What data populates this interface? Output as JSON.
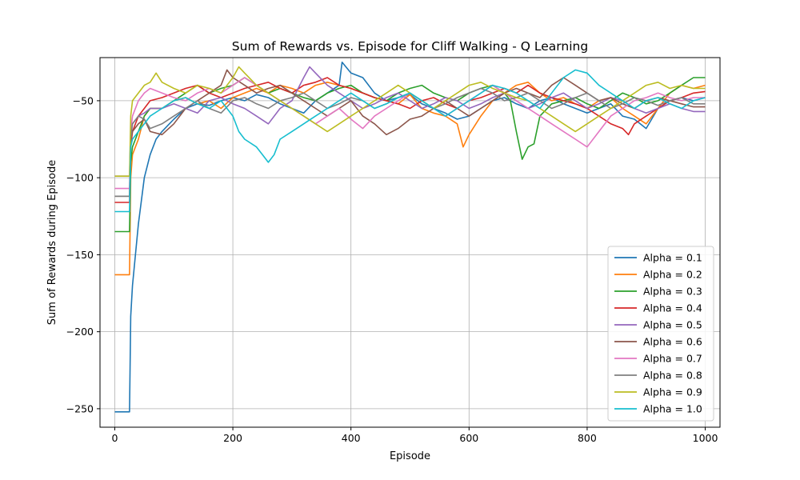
{
  "chart_data": {
    "type": "line",
    "title": "Sum of Rewards vs. Episode for Cliff Walking - Q Learning",
    "xlabel": "Episode",
    "ylabel": "Sum of Rewards during Episode",
    "xlim": [
      -25,
      1025
    ],
    "ylim": [
      -262,
      -22
    ],
    "xticks": [
      0,
      200,
      400,
      600,
      800,
      1000
    ],
    "yticks": [
      -250,
      -200,
      -150,
      -100,
      -50
    ],
    "grid": true,
    "legend_position": "bottom-right",
    "series": [
      {
        "name": "Alpha = 0.1",
        "color": "#1f77b4",
        "x": [
          0,
          25,
          27,
          30,
          35,
          40,
          45,
          50,
          60,
          70,
          80,
          90,
          100,
          120,
          140,
          160,
          180,
          200,
          220,
          240,
          260,
          280,
          300,
          320,
          340,
          360,
          380,
          385,
          400,
          420,
          440,
          460,
          480,
          500,
          520,
          540,
          560,
          580,
          600,
          620,
          640,
          660,
          680,
          700,
          720,
          740,
          760,
          780,
          800,
          820,
          840,
          860,
          880,
          900,
          920,
          940,
          960,
          980,
          1000
        ],
        "y": [
          -252,
          -252,
          -190,
          -170,
          -150,
          -130,
          -115,
          -100,
          -85,
          -75,
          -70,
          -66,
          -62,
          -55,
          -52,
          -53,
          -50,
          -48,
          -50,
          -46,
          -48,
          -52,
          -55,
          -58,
          -50,
          -45,
          -40,
          -25,
          -32,
          -35,
          -45,
          -50,
          -48,
          -46,
          -52,
          -55,
          -58,
          -62,
          -60,
          -55,
          -50,
          -48,
          -52,
          -55,
          -50,
          -48,
          -52,
          -55,
          -58,
          -55,
          -52,
          -60,
          -62,
          -68,
          -55,
          -50,
          -48,
          -50,
          -48
        ]
      },
      {
        "name": "Alpha = 0.2",
        "color": "#ff7f0e",
        "x": [
          0,
          25,
          27,
          30,
          40,
          50,
          60,
          80,
          100,
          120,
          140,
          160,
          180,
          200,
          220,
          240,
          260,
          280,
          300,
          320,
          340,
          360,
          380,
          400,
          420,
          440,
          460,
          480,
          500,
          520,
          540,
          560,
          580,
          590,
          600,
          620,
          640,
          660,
          680,
          700,
          720,
          740,
          760,
          780,
          800,
          820,
          840,
          860,
          880,
          900,
          920,
          940,
          960,
          980,
          1000
        ],
        "y": [
          -163,
          -163,
          -100,
          -85,
          -75,
          -60,
          -55,
          -55,
          -50,
          -48,
          -52,
          -50,
          -55,
          -48,
          -45,
          -42,
          -45,
          -40,
          -42,
          -45,
          -40,
          -38,
          -40,
          -42,
          -45,
          -48,
          -50,
          -52,
          -46,
          -55,
          -58,
          -60,
          -65,
          -80,
          -72,
          -60,
          -50,
          -45,
          -40,
          -38,
          -45,
          -50,
          -48,
          -52,
          -55,
          -50,
          -48,
          -55,
          -60,
          -65,
          -55,
          -45,
          -40,
          -42,
          -40
        ]
      },
      {
        "name": "Alpha = 0.3",
        "color": "#2ca02c",
        "x": [
          0,
          25,
          27,
          30,
          40,
          50,
          60,
          80,
          100,
          120,
          140,
          160,
          180,
          200,
          220,
          240,
          260,
          280,
          300,
          320,
          340,
          360,
          380,
          400,
          420,
          440,
          460,
          480,
          500,
          520,
          540,
          560,
          580,
          600,
          620,
          640,
          660,
          670,
          680,
          690,
          700,
          710,
          720,
          740,
          760,
          780,
          800,
          820,
          840,
          860,
          880,
          900,
          920,
          940,
          960,
          980,
          1000
        ],
        "y": [
          -135,
          -135,
          -90,
          -80,
          -70,
          -60,
          -55,
          -55,
          -50,
          -45,
          -40,
          -45,
          -42,
          -40,
          -35,
          -40,
          -45,
          -42,
          -45,
          -48,
          -50,
          -45,
          -42,
          -40,
          -45,
          -48,
          -50,
          -45,
          -42,
          -40,
          -45,
          -48,
          -50,
          -45,
          -42,
          -40,
          -45,
          -50,
          -70,
          -88,
          -80,
          -78,
          -60,
          -52,
          -50,
          -48,
          -52,
          -55,
          -50,
          -45,
          -48,
          -52,
          -50,
          -45,
          -40,
          -35,
          -35
        ]
      },
      {
        "name": "Alpha = 0.4",
        "color": "#d62728",
        "x": [
          0,
          25,
          27,
          30,
          40,
          50,
          60,
          80,
          100,
          120,
          140,
          160,
          180,
          200,
          220,
          240,
          260,
          280,
          300,
          320,
          340,
          360,
          380,
          400,
          420,
          440,
          460,
          480,
          500,
          520,
          540,
          560,
          580,
          600,
          620,
          640,
          660,
          680,
          700,
          720,
          740,
          760,
          780,
          800,
          820,
          840,
          860,
          870,
          880,
          900,
          920,
          940,
          960,
          980,
          1000
        ],
        "y": [
          -116,
          -116,
          -80,
          -70,
          -60,
          -55,
          -50,
          -48,
          -45,
          -42,
          -40,
          -45,
          -48,
          -45,
          -42,
          -40,
          -38,
          -42,
          -45,
          -40,
          -38,
          -35,
          -40,
          -42,
          -45,
          -48,
          -50,
          -52,
          -55,
          -50,
          -48,
          -52,
          -55,
          -50,
          -48,
          -45,
          -42,
          -45,
          -40,
          -45,
          -48,
          -50,
          -52,
          -55,
          -60,
          -65,
          -68,
          -72,
          -65,
          -60,
          -55,
          -50,
          -48,
          -45,
          -44
        ]
      },
      {
        "name": "Alpha = 0.5",
        "color": "#9467bd",
        "x": [
          0,
          25,
          27,
          30,
          40,
          50,
          60,
          80,
          100,
          120,
          140,
          160,
          180,
          200,
          220,
          240,
          260,
          280,
          300,
          320,
          330,
          340,
          360,
          380,
          400,
          420,
          440,
          460,
          480,
          500,
          520,
          540,
          560,
          580,
          600,
          620,
          640,
          660,
          680,
          700,
          720,
          740,
          760,
          780,
          800,
          820,
          840,
          860,
          880,
          900,
          920,
          940,
          960,
          980,
          1000
        ],
        "y": [
          -99,
          -99,
          -70,
          -65,
          -60,
          -58,
          -55,
          -55,
          -52,
          -55,
          -58,
          -50,
          -48,
          -52,
          -55,
          -60,
          -65,
          -55,
          -50,
          -35,
          -28,
          -32,
          -40,
          -45,
          -50,
          -55,
          -52,
          -48,
          -45,
          -50,
          -55,
          -52,
          -48,
          -50,
          -55,
          -52,
          -48,
          -45,
          -50,
          -55,
          -52,
          -48,
          -45,
          -50,
          -55,
          -52,
          -48,
          -50,
          -55,
          -58,
          -55,
          -52,
          -55,
          -57,
          -57
        ]
      },
      {
        "name": "Alpha = 0.6",
        "color": "#8c564b",
        "x": [
          0,
          25,
          27,
          30,
          40,
          50,
          60,
          80,
          100,
          120,
          140,
          160,
          180,
          190,
          200,
          220,
          240,
          260,
          280,
          300,
          320,
          340,
          360,
          380,
          400,
          420,
          440,
          460,
          480,
          500,
          520,
          540,
          560,
          580,
          600,
          620,
          640,
          660,
          680,
          700,
          720,
          740,
          760,
          780,
          800,
          820,
          840,
          860,
          880,
          900,
          920,
          940,
          960,
          980,
          1000
        ],
        "y": [
          -112,
          -112,
          -75,
          -70,
          -65,
          -62,
          -70,
          -72,
          -65,
          -55,
          -50,
          -45,
          -40,
          -30,
          -35,
          -40,
          -45,
          -42,
          -40,
          -45,
          -50,
          -55,
          -60,
          -55,
          -50,
          -60,
          -65,
          -72,
          -68,
          -62,
          -60,
          -55,
          -50,
          -55,
          -60,
          -55,
          -50,
          -45,
          -42,
          -45,
          -48,
          -40,
          -35,
          -40,
          -45,
          -50,
          -48,
          -52,
          -55,
          -50,
          -48,
          -50,
          -52,
          -54,
          -54
        ]
      },
      {
        "name": "Alpha = 0.7",
        "color": "#e377c2",
        "x": [
          0,
          25,
          27,
          30,
          40,
          50,
          60,
          80,
          100,
          120,
          140,
          160,
          180,
          200,
          220,
          240,
          260,
          280,
          300,
          320,
          340,
          360,
          380,
          400,
          420,
          440,
          460,
          480,
          500,
          520,
          540,
          560,
          580,
          600,
          620,
          640,
          660,
          680,
          700,
          720,
          740,
          760,
          780,
          800,
          820,
          840,
          860,
          880,
          900,
          920,
          940,
          960,
          980,
          1000
        ],
        "y": [
          -107,
          -107,
          -70,
          -60,
          -50,
          -45,
          -42,
          -45,
          -48,
          -50,
          -45,
          -42,
          -45,
          -40,
          -35,
          -40,
          -45,
          -50,
          -55,
          -60,
          -65,
          -60,
          -55,
          -62,
          -68,
          -60,
          -55,
          -50,
          -45,
          -50,
          -55,
          -60,
          -55,
          -50,
          -45,
          -40,
          -45,
          -50,
          -55,
          -60,
          -65,
          -70,
          -75,
          -80,
          -70,
          -60,
          -55,
          -50,
          -48,
          -45,
          -48,
          -50,
          -48,
          -48
        ]
      },
      {
        "name": "Alpha = 0.8",
        "color": "#7f7f7f",
        "x": [
          0,
          25,
          27,
          30,
          40,
          50,
          60,
          80,
          100,
          120,
          140,
          160,
          180,
          200,
          220,
          240,
          260,
          280,
          300,
          320,
          340,
          360,
          380,
          400,
          420,
          440,
          460,
          480,
          500,
          520,
          540,
          560,
          580,
          600,
          620,
          640,
          660,
          680,
          700,
          720,
          740,
          760,
          780,
          800,
          820,
          840,
          860,
          880,
          900,
          920,
          940,
          960,
          980,
          1000
        ],
        "y": [
          -112,
          -112,
          -75,
          -65,
          -60,
          -62,
          -68,
          -65,
          -60,
          -55,
          -50,
          -55,
          -58,
          -50,
          -48,
          -52,
          -55,
          -50,
          -48,
          -45,
          -50,
          -55,
          -52,
          -48,
          -50,
          -55,
          -52,
          -48,
          -45,
          -50,
          -55,
          -52,
          -48,
          -45,
          -42,
          -45,
          -50,
          -48,
          -45,
          -50,
          -55,
          -52,
          -48,
          -45,
          -50,
          -55,
          -52,
          -48,
          -50,
          -53,
          -50,
          -48,
          -52,
          -52
        ]
      },
      {
        "name": "Alpha = 0.9",
        "color": "#bcbd22",
        "x": [
          0,
          25,
          27,
          30,
          40,
          50,
          60,
          70,
          80,
          100,
          120,
          140,
          160,
          180,
          200,
          210,
          220,
          240,
          260,
          280,
          300,
          320,
          340,
          360,
          380,
          400,
          420,
          440,
          460,
          480,
          500,
          520,
          540,
          560,
          580,
          600,
          620,
          640,
          660,
          680,
          700,
          720,
          740,
          760,
          780,
          800,
          820,
          840,
          860,
          880,
          900,
          920,
          940,
          960,
          980,
          1000
        ],
        "y": [
          -99,
          -99,
          -60,
          -50,
          -45,
          -40,
          -38,
          -32,
          -38,
          -42,
          -45,
          -40,
          -42,
          -45,
          -35,
          -28,
          -32,
          -40,
          -45,
          -50,
          -55,
          -60,
          -65,
          -70,
          -65,
          -60,
          -55,
          -50,
          -45,
          -40,
          -45,
          -50,
          -55,
          -50,
          -45,
          -40,
          -38,
          -42,
          -45,
          -48,
          -50,
          -55,
          -60,
          -65,
          -70,
          -65,
          -60,
          -55,
          -50,
          -45,
          -40,
          -38,
          -42,
          -40,
          -42,
          -42
        ]
      },
      {
        "name": "Alpha = 1.0",
        "color": "#17becf",
        "x": [
          0,
          25,
          27,
          30,
          40,
          50,
          60,
          80,
          100,
          120,
          140,
          160,
          180,
          200,
          210,
          220,
          240,
          250,
          260,
          270,
          280,
          300,
          320,
          340,
          360,
          380,
          400,
          420,
          440,
          460,
          480,
          500,
          520,
          540,
          560,
          580,
          600,
          620,
          640,
          660,
          680,
          700,
          720,
          740,
          760,
          780,
          800,
          820,
          840,
          860,
          880,
          900,
          920,
          940,
          960,
          980,
          1000
        ],
        "y": [
          -122,
          -122,
          -80,
          -75,
          -70,
          -65,
          -60,
          -55,
          -50,
          -48,
          -52,
          -55,
          -50,
          -60,
          -70,
          -75,
          -80,
          -85,
          -90,
          -85,
          -75,
          -70,
          -65,
          -60,
          -55,
          -50,
          -45,
          -50,
          -55,
          -52,
          -48,
          -45,
          -50,
          -55,
          -60,
          -55,
          -50,
          -45,
          -40,
          -42,
          -45,
          -50,
          -55,
          -45,
          -35,
          -30,
          -32,
          -40,
          -45,
          -50,
          -55,
          -50,
          -48,
          -52,
          -55,
          -50,
          -48
        ]
      }
    ]
  }
}
